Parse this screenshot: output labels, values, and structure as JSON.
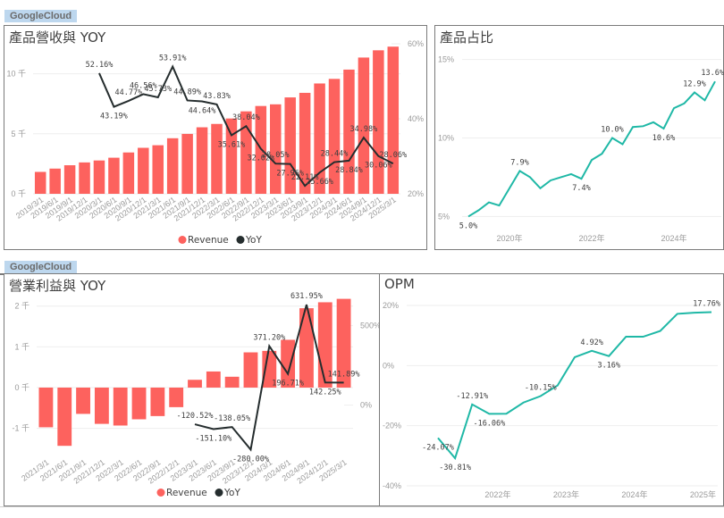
{
  "tags": {
    "top": "GoogleCloud",
    "bottom": "GoogleCloud"
  },
  "colors": {
    "revenue": "#fd625e",
    "yoy": "#252d2e",
    "teal": "#1fb8a6",
    "tag_bg": "#bdd7ee"
  },
  "chart_data": [
    {
      "id": "revenue_yoy",
      "type": "bar",
      "title": "產品營收與 YOY",
      "categories": [
        "2019/3/1",
        "2019/6/1",
        "2019/9/1",
        "2019/12/1",
        "2020/3/1",
        "2020/6/1",
        "2020/9/1",
        "2020/12/1",
        "2021/3/1",
        "2021/6/1",
        "2021/9/1",
        "2021/12/1",
        "2022/3/1",
        "2022/6/1",
        "2022/9/1",
        "2022/12/1",
        "2023/3/1",
        "2023/6/1",
        "2023/9/1",
        "2023/12/1",
        "2024/3/1",
        "2024/6/1",
        "2024/9/1",
        "2024/12/1",
        "2025/3/1"
      ],
      "series": [
        {
          "name": "Revenue",
          "type": "bar",
          "axis": "left",
          "values": [
            1825,
            2100,
            2379,
            2614,
            2777,
            3007,
            3444,
            3831,
            4047,
            4628,
            4990,
            5541,
            5821,
            6275,
            6868,
            7315,
            7454,
            8031,
            8411,
            9192,
            9574,
            10347,
            11353,
            11955,
            12260
          ]
        },
        {
          "name": "YoY",
          "type": "line",
          "axis": "right",
          "values": [
            null,
            null,
            null,
            null,
            52.16,
            43.19,
            44.77,
            46.56,
            45.73,
            53.91,
            44.89,
            44.64,
            43.83,
            35.61,
            38.04,
            32.02,
            28.05,
            27.96,
            22.11,
            25.66,
            28.44,
            28.84,
            34.98,
            30.06,
            28.06
          ],
          "labels": [
            null,
            null,
            null,
            null,
            "52.16%",
            "43.19%",
            "44.77%",
            "46.56%",
            "45.73%",
            "53.91%",
            "44.89%",
            "44.64%",
            "43.83%",
            "35.61%",
            "38.04%",
            "32.02%",
            "28.05%",
            "27.96%",
            "22.11%",
            "25.66%",
            "28.44%",
            "28.84%",
            "34.98%",
            "30.06%",
            "28.06%"
          ]
        }
      ],
      "left_axis": {
        "ticks": [
          0,
          5000,
          10000
        ],
        "tick_labels": [
          "0 千",
          "5 千",
          "10 千"
        ],
        "range": [
          0,
          12500
        ]
      },
      "right_axis": {
        "ticks": [
          20,
          40,
          60
        ],
        "tick_labels": [
          "20%",
          "40%",
          "60%"
        ],
        "range": [
          20,
          60
        ]
      },
      "legend": {
        "position": "bottom-center",
        "items": [
          "Revenue",
          "YoY"
        ]
      }
    },
    {
      "id": "product_share",
      "type": "line",
      "title": "產品占比",
      "x": [
        "2019Q1",
        "2019Q2",
        "2019Q3",
        "2019Q4",
        "2020Q1",
        "2020Q2",
        "2020Q3",
        "2020Q4",
        "2021Q1",
        "2021Q2",
        "2021Q3",
        "2021Q4",
        "2022Q1",
        "2022Q2",
        "2022Q3",
        "2022Q4",
        "2023Q1",
        "2023Q2",
        "2023Q3",
        "2023Q4",
        "2024Q1",
        "2024Q2",
        "2024Q3",
        "2024Q4",
        "2025Q1"
      ],
      "values": [
        5.0,
        5.4,
        5.9,
        5.7,
        6.8,
        7.9,
        7.5,
        6.8,
        7.3,
        7.5,
        7.7,
        7.4,
        8.6,
        9.0,
        10.0,
        9.6,
        10.7,
        10.75,
        11.0,
        10.6,
        11.9,
        12.2,
        12.9,
        12.4,
        13.6
      ],
      "labels": [
        "5.0%",
        null,
        null,
        null,
        null,
        "7.9%",
        null,
        null,
        null,
        null,
        null,
        "7.4%",
        null,
        null,
        "10.0%",
        null,
        null,
        null,
        null,
        "10.6%",
        null,
        null,
        "12.9%",
        null,
        "13.6%"
      ],
      "y_axis": {
        "ticks": [
          5,
          10,
          15
        ],
        "tick_labels": [
          "5%",
          "10%",
          "15%"
        ],
        "range": [
          4,
          16
        ]
      },
      "x_ticks": [
        {
          "index": 4,
          "label": "2020年"
        },
        {
          "index": 12,
          "label": "2022年"
        },
        {
          "index": 20,
          "label": "2024年"
        }
      ]
    },
    {
      "id": "opinc_yoy",
      "type": "bar",
      "title": "營業利益與 YOY",
      "categories": [
        "2021/3/1",
        "2021/6/1",
        "2021/9/1",
        "2021/12/1",
        "2022/3/1",
        "2022/6/1",
        "2022/9/1",
        "2022/12/1",
        "2023/3/1",
        "2023/6/1",
        "2023/9/1",
        "2023/12/1",
        "2024/3/1",
        "2024/6/1",
        "2024/9/1",
        "2024/12/1",
        "2025/3/1"
      ],
      "series": [
        {
          "name": "Revenue",
          "type": "bar",
          "axis": "left",
          "values": [
            -974,
            -1429,
            -645,
            -890,
            -931,
            -778,
            -699,
            -480,
            191,
            395,
            266,
            864,
            900,
            1172,
            1947,
            2093,
            2177
          ]
        },
        {
          "name": "YoY",
          "type": "line",
          "axis": "right",
          "values": [
            null,
            null,
            null,
            null,
            null,
            null,
            null,
            null,
            -120.52,
            -151.1,
            -138.05,
            -280.0,
            371.2,
            196.71,
            631.95,
            142.25,
            141.89
          ],
          "labels": [
            null,
            null,
            null,
            null,
            null,
            null,
            null,
            null,
            "-120.52%",
            "-151.10%",
            "-138.05%",
            "-280.00%",
            "371.20%",
            "196.71%",
            "631.95%",
            "142.25%",
            "141.89%"
          ]
        }
      ],
      "left_axis": {
        "ticks": [
          -1000,
          0,
          1000,
          2000
        ],
        "tick_labels": [
          "-1 千",
          "0 千",
          "1 千",
          "2 千"
        ],
        "range": [
          -1600,
          2300
        ]
      },
      "right_axis": {
        "ticks": [
          0,
          500
        ],
        "tick_labels": [
          "0%",
          "500%"
        ],
        "range": [
          -300,
          700
        ]
      },
      "legend": {
        "position": "bottom-center",
        "items": [
          "Revenue",
          "YoY"
        ]
      }
    },
    {
      "id": "opm",
      "type": "line",
      "title": "OPM",
      "x": [
        "2021Q1",
        "2021Q2",
        "2021Q3",
        "2021Q4",
        "2022Q1",
        "2022Q2",
        "2022Q3",
        "2022Q4",
        "2023Q1",
        "2023Q2",
        "2023Q3",
        "2023Q4",
        "2024Q1",
        "2024Q2",
        "2024Q3",
        "2024Q4",
        "2025Q1"
      ],
      "values": [
        -24.07,
        -30.81,
        -12.91,
        -16.06,
        -16.0,
        -12.3,
        -10.15,
        -6.6,
        2.8,
        4.92,
        3.16,
        9.6,
        9.6,
        11.5,
        17.2,
        17.6,
        17.76
      ],
      "labels": [
        "-24.07%",
        "-30.81%",
        "-12.91%",
        "-16.06%",
        null,
        null,
        "-10.15%",
        null,
        null,
        "4.92%",
        "3.16%",
        null,
        null,
        null,
        null,
        null,
        "17.76%"
      ],
      "y_axis": {
        "ticks": [
          -40,
          -20,
          0,
          20
        ],
        "tick_labels": [
          "-40%",
          "-20%",
          "0%",
          "20%"
        ],
        "range": [
          -40,
          20
        ]
      },
      "x_ticks": [
        {
          "index": 3.5,
          "label": "2022年"
        },
        {
          "index": 7.5,
          "label": "2023年"
        },
        {
          "index": 11.5,
          "label": "2024年"
        },
        {
          "index": 15.5,
          "label": "2025年"
        }
      ]
    }
  ]
}
